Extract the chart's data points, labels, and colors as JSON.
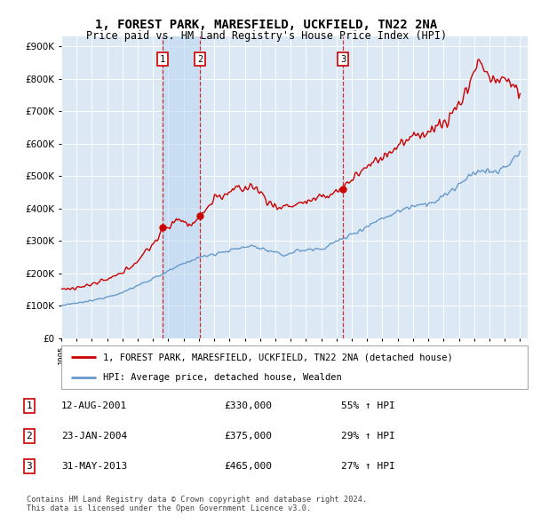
{
  "title1": "1, FOREST PARK, MARESFIELD, UCKFIELD, TN22 2NA",
  "title2": "Price paid vs. HM Land Registry's House Price Index (HPI)",
  "plot_bg_color": "#dce9f5",
  "grid_color": "#ffffff",
  "sale_color": "#cc0000",
  "hpi_color": "#6699cc",
  "sale_dates": [
    2001.616,
    2004.065,
    2013.414
  ],
  "sale_prices": [
    330000,
    375000,
    465000
  ],
  "sale_labels": [
    "1",
    "2",
    "3"
  ],
  "legend_sale": "1, FOREST PARK, MARESFIELD, UCKFIELD, TN22 2NA (detached house)",
  "legend_hpi": "HPI: Average price, detached house, Wealden",
  "table_rows": [
    [
      "1",
      "12-AUG-2001",
      "£330,000",
      "55% ↑ HPI"
    ],
    [
      "2",
      "23-JAN-2004",
      "£375,000",
      "29% ↑ HPI"
    ],
    [
      "3",
      "31-MAY-2013",
      "£465,000",
      "27% ↑ HPI"
    ]
  ],
  "footer": "Contains HM Land Registry data © Crown copyright and database right 2024.\nThis data is licensed under the Open Government Licence v3.0.",
  "ylim": [
    0,
    930000
  ],
  "yticks": [
    0,
    100000,
    200000,
    300000,
    400000,
    500000,
    600000,
    700000,
    800000,
    900000
  ],
  "xlim_start": 1995.0,
  "xlim_end": 2025.5
}
